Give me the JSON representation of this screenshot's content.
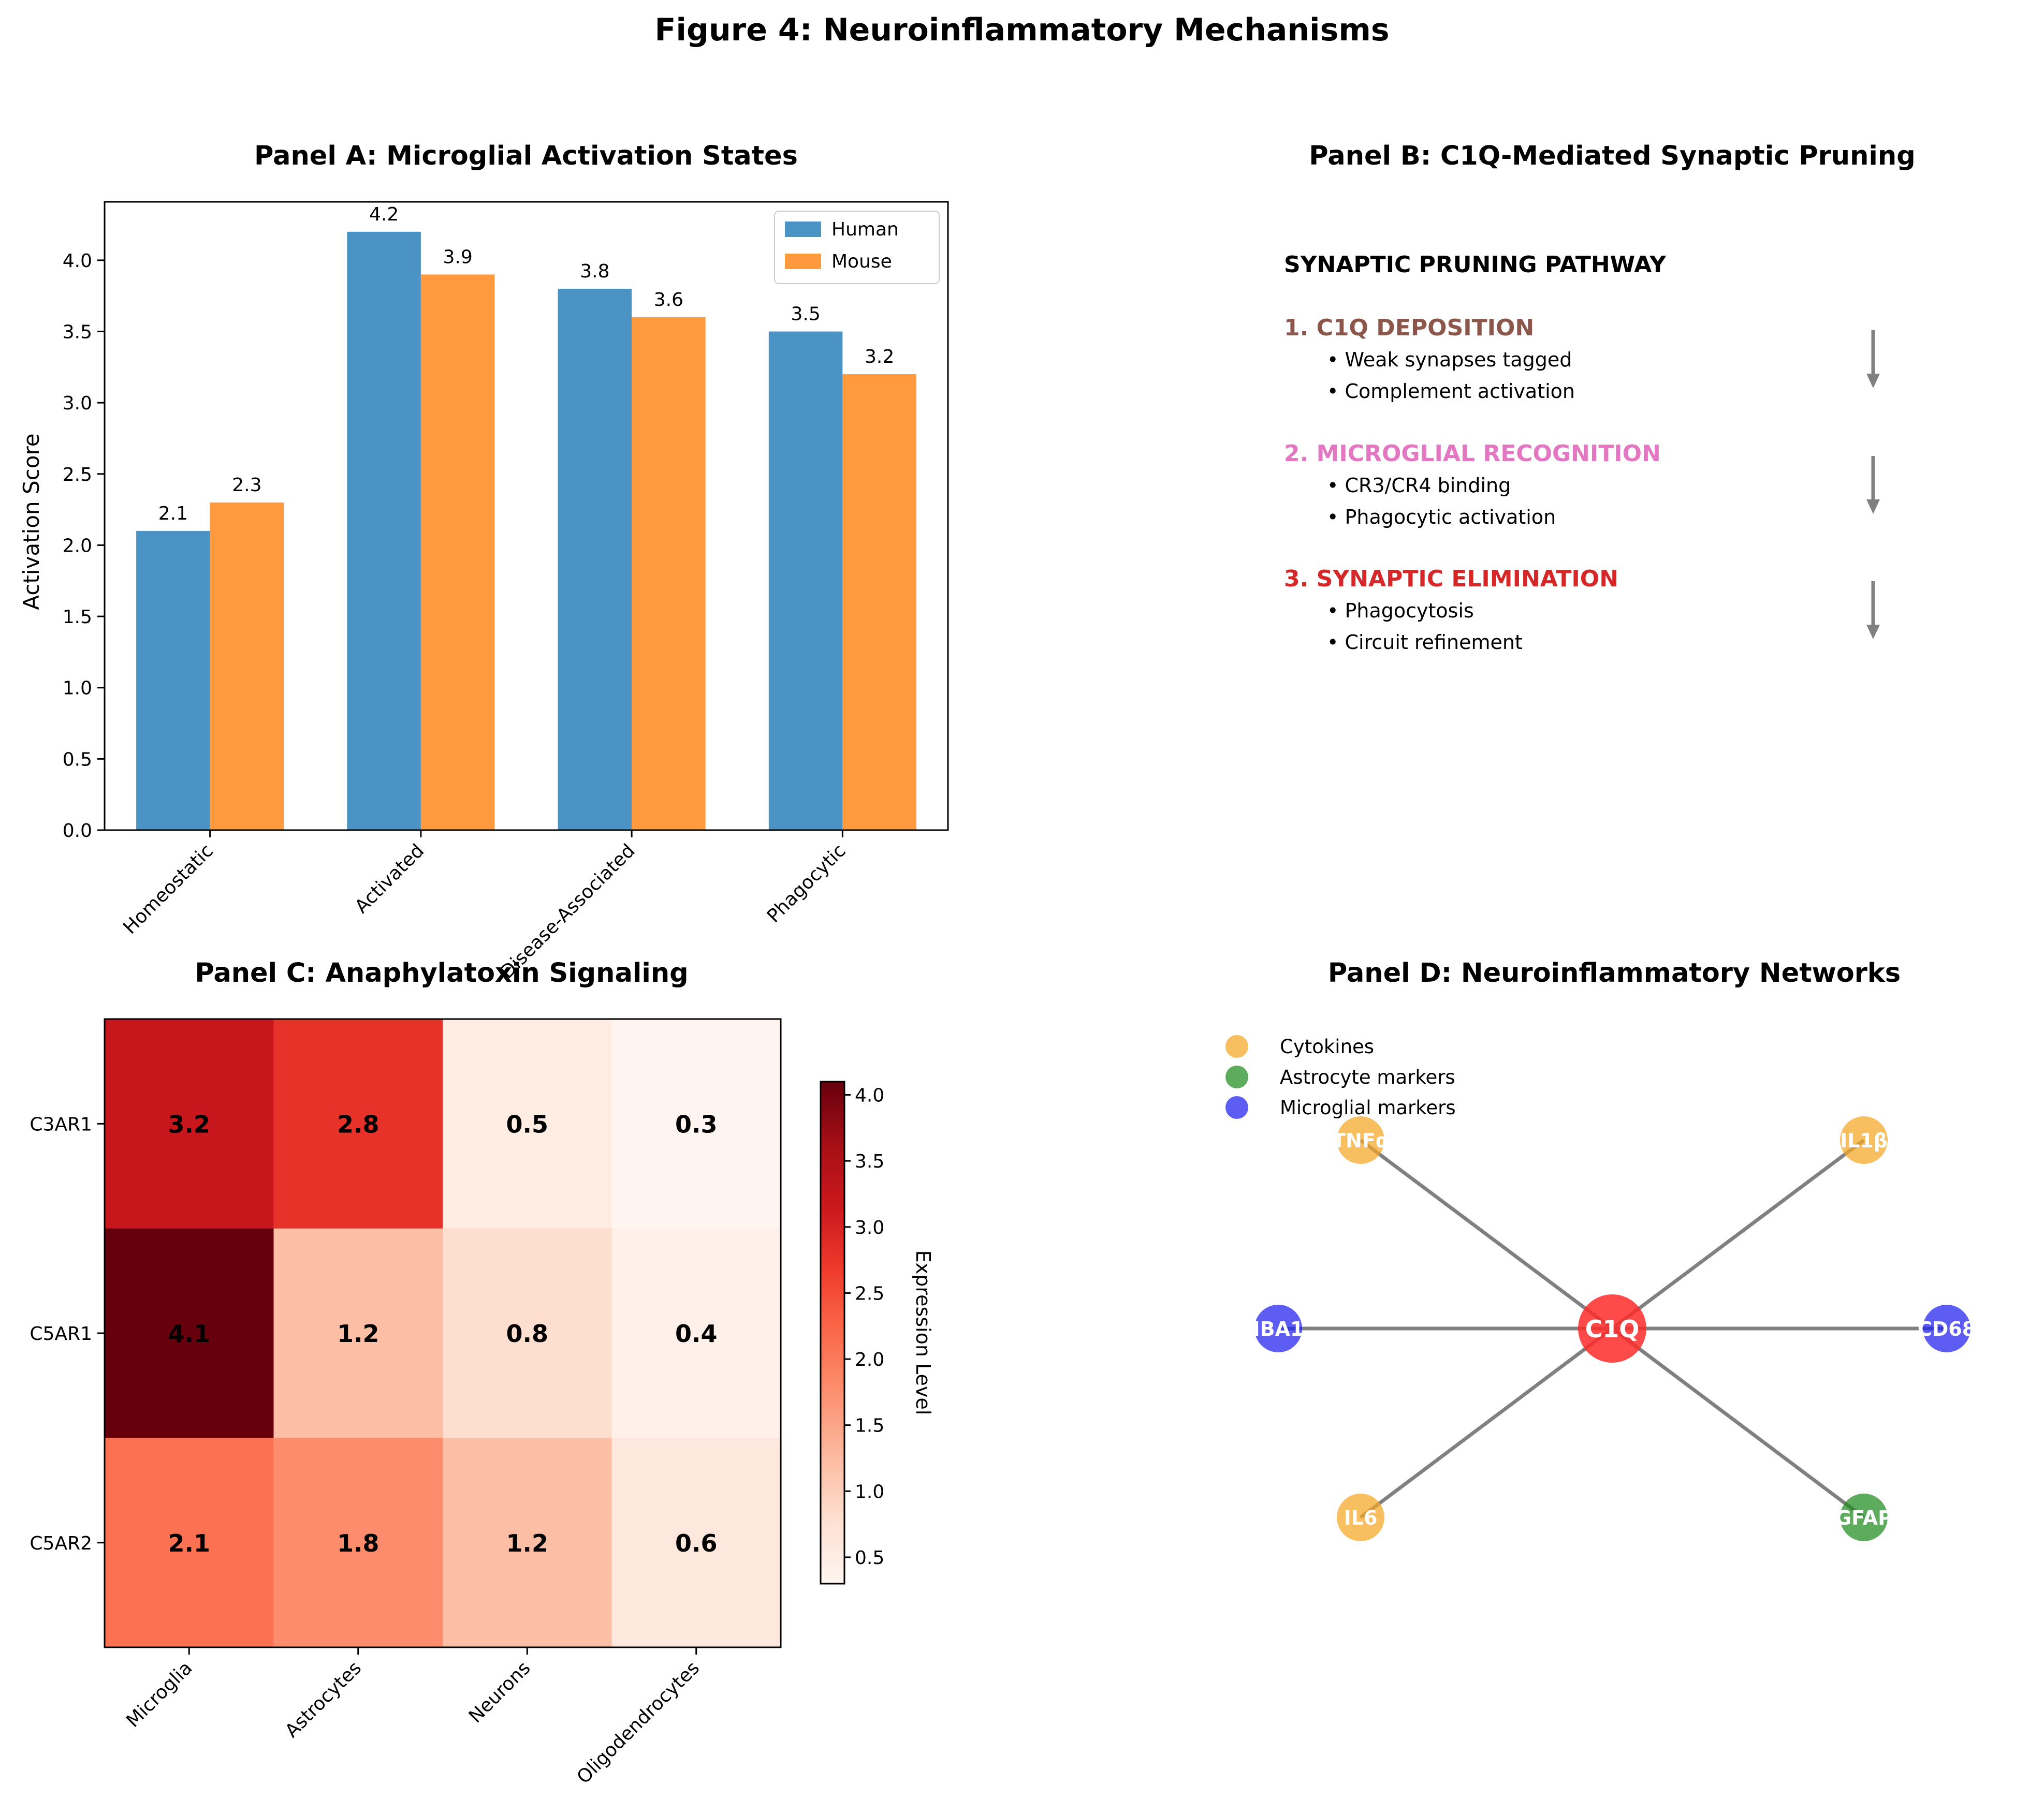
{
  "figure": {
    "title": "Figure 4: Neuroinflammatory Mechanisms"
  },
  "chart_data": [
    {
      "panel": "A",
      "type": "bar",
      "title": "Panel A: Microglial Activation States",
      "xlabel": "",
      "ylabel": "Activation Score",
      "categories": [
        "Homeostatic",
        "Activated",
        "Disease-Associated",
        "Phagocytic"
      ],
      "series": [
        {
          "name": "Human",
          "color": "#4c93c5",
          "values": [
            2.1,
            4.2,
            3.8,
            3.5
          ]
        },
        {
          "name": "Mouse",
          "color": "#ff9a3e",
          "values": [
            2.3,
            3.9,
            3.6,
            3.2
          ]
        }
      ],
      "ylim": [
        0,
        4.41
      ],
      "yticks": [
        "0.0",
        "0.5",
        "1.0",
        "1.5",
        "2.0",
        "2.5",
        "3.0",
        "3.5",
        "4.0"
      ],
      "legend": "top-right",
      "grid": false
    },
    {
      "panel": "C",
      "type": "heatmap",
      "title": "Panel C: Anaphylatoxin Signaling",
      "rows": [
        "C3AR1",
        "C5AR1",
        "C5AR2"
      ],
      "columns": [
        "Microglia",
        "Astrocytes",
        "Neurons",
        "Oligodendrocytes"
      ],
      "values": [
        [
          3.2,
          2.8,
          0.5,
          0.3
        ],
        [
          4.1,
          1.2,
          0.8,
          0.4
        ],
        [
          2.1,
          1.8,
          1.2,
          0.6
        ]
      ],
      "colorbar": {
        "label": "Expression Level",
        "range": [
          0.3,
          4.1
        ],
        "ticks": [
          "0.5",
          "1.0",
          "1.5",
          "2.0",
          "2.5",
          "3.0",
          "3.5",
          "4.0"
        ],
        "colormap": "Reds"
      }
    }
  ],
  "panel_b": {
    "title": "Panel B: C1Q-Mediated Synaptic Pruning",
    "heading": "SYNAPTIC PRUNING PATHWAY",
    "heading_color": "#8b0000",
    "steps": [
      {
        "label": "1. C1Q DEPOSITION",
        "color": "#8c564b",
        "bullets": [
          "• Weak synapses tagged",
          "• Complement activation"
        ]
      },
      {
        "label": "2. MICROGLIAL RECOGNITION",
        "color": "#e377c2",
        "bullets": [
          "• CR3/CR4 binding",
          "• Phagocytic activation"
        ]
      },
      {
        "label": "3. SYNAPTIC ELIMINATION",
        "color": "#d62728",
        "bullets": [
          "• Phagocytosis",
          "• Circuit refinement"
        ]
      }
    ]
  },
  "panel_d": {
    "title": "Panel D: Neuroinflammatory Networks",
    "legend": [
      {
        "label": "Cytokines",
        "color": "#f5a623"
      },
      {
        "label": "Astrocyte markers",
        "color": "#1f8a1f"
      },
      {
        "label": "Microglial markers",
        "color": "#1e1ef0"
      }
    ],
    "center": {
      "label": "C1Q",
      "color": "#ff2a2a"
    },
    "nodes": [
      {
        "id": "TNFa",
        "label": "TNFα",
        "color": "#f5a623"
      },
      {
        "id": "IL1B",
        "label": "IL1β",
        "color": "#f5a623"
      },
      {
        "id": "IBA1",
        "label": "IBA1",
        "color": "#1e1ef0"
      },
      {
        "id": "CD68",
        "label": "CD68",
        "color": "#1e1ef0"
      },
      {
        "id": "IL6",
        "label": "IL6",
        "color": "#f5a623"
      },
      {
        "id": "GFAP",
        "label": "GFAP",
        "color": "#1f8a1f"
      }
    ]
  }
}
